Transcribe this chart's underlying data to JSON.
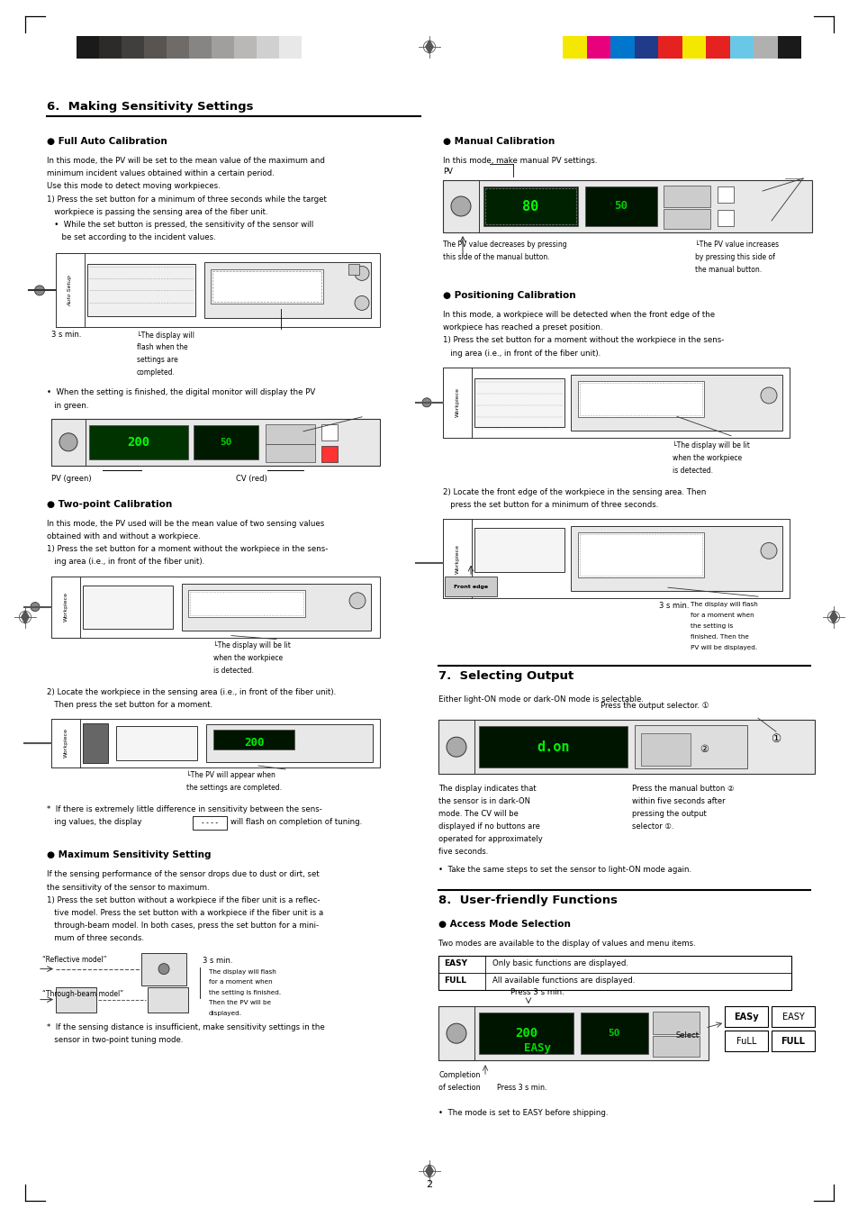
{
  "page_bg": "#ffffff",
  "page_width": 9.54,
  "page_height": 13.51,
  "dpi": 100,
  "header_bar_left_colors": [
    "#1a1a1a",
    "#2d2b2a",
    "#413f3d",
    "#575452",
    "#6e6b69",
    "#878584",
    "#a09f9e",
    "#b9b8b7",
    "#d1d0d0",
    "#e8e8e8"
  ],
  "header_bar_right_colors": [
    "#f5e800",
    "#e8007d",
    "#0077cc",
    "#1f3b8a",
    "#e52220",
    "#f5e800",
    "#e52220",
    "#69c8e8",
    "#b0b0b0",
    "#1a1a1a"
  ],
  "section6_title": "6.  Making Sensitivity Settings",
  "full_auto_title": "● Full Auto Calibration",
  "two_point_title": "● Two-point Calibration",
  "max_sens_title": "● Maximum Sensitivity Setting",
  "manual_cal_title": "● Manual Calibration",
  "pos_cal_title": "● Positioning Calibration",
  "section7_title": "7.  Selecting Output",
  "section8_title": "8.  User-friendly Functions",
  "access_mode_title": "● Access Mode Selection",
  "page_number": "2"
}
